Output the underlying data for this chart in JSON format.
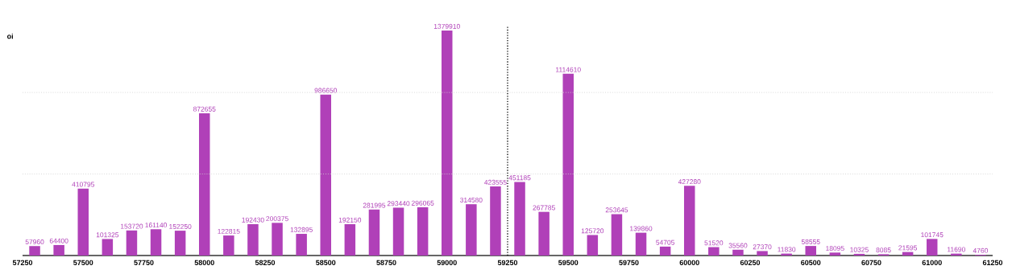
{
  "chart_data": {
    "type": "bar",
    "ylabel": "oi",
    "x": [
      57300,
      57400,
      57500,
      57600,
      57700,
      57800,
      57900,
      58000,
      58100,
      58200,
      58300,
      58400,
      58500,
      58600,
      58700,
      58800,
      58900,
      59000,
      59100,
      59200,
      59300,
      59400,
      59500,
      59600,
      59700,
      59800,
      59900,
      60000,
      60100,
      60200,
      60300,
      60400,
      60500,
      60600,
      60700,
      60800,
      60900,
      61000,
      61100,
      61200
    ],
    "values": [
      57960,
      64400,
      410795,
      101325,
      153720,
      161140,
      152250,
      872655,
      122815,
      192430,
      200375,
      132895,
      986650,
      192150,
      281995,
      293440,
      296065,
      1379910,
      314580,
      423555,
      451185,
      267785,
      1114610,
      125720,
      253645,
      139860,
      54705,
      427280,
      51520,
      35560,
      27370,
      11830,
      58555,
      18095,
      10325,
      8085,
      21595,
      101745,
      11690,
      4760
    ],
    "color": "#b040b8",
    "data_labels": true,
    "xlim": [
      57250,
      61250
    ],
    "xticks": [
      57250,
      57500,
      57750,
      58000,
      58250,
      58500,
      58750,
      59000,
      59250,
      59500,
      59750,
      60000,
      60250,
      60500,
      60750,
      61000,
      61250
    ],
    "tick_labels": "x",
    "ref_lines": [
      {
        "axis": "x",
        "value": 59250,
        "color": "#000000",
        "line_style": "dotted"
      },
      {
        "axis": "y",
        "value": 500000,
        "color": "#d0d0d0",
        "line_style": "dotted"
      },
      {
        "axis": "y",
        "value": 1000000,
        "color": "#d0d0d0",
        "line_style": "dotted"
      }
    ]
  }
}
